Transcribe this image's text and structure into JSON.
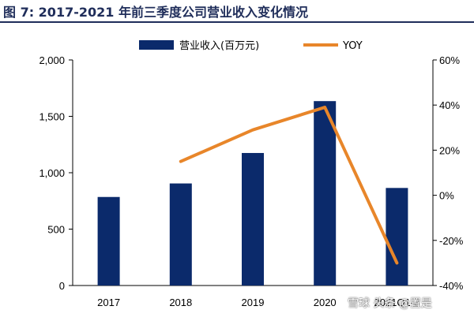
{
  "title": "图 7:  2017-2021 年前三季度公司营业收入变化情况",
  "chart_data": {
    "type": "bar+line",
    "categories": [
      "2017",
      "2018",
      "2019",
      "2020",
      "2021Q1-3"
    ],
    "series": [
      {
        "name": "营业收入(百万元)",
        "type": "bar",
        "axis": "left",
        "color": "#0b2a6b",
        "values": [
          785,
          905,
          1175,
          1635,
          865
        ]
      },
      {
        "name": "YOY",
        "type": "line",
        "axis": "right",
        "color": "#e8862a",
        "values": [
          null,
          15,
          29,
          39,
          -30
        ]
      }
    ],
    "ylim_left": [
      0,
      2000
    ],
    "ylim_right": [
      -40,
      60
    ],
    "left_ticks": [
      "0",
      "500",
      "1,000",
      "1,500",
      "2,000"
    ],
    "right_ticks": [
      "-40%",
      "-20%",
      "0%",
      "20%",
      "40%",
      "60%"
    ],
    "legend_position": "top"
  },
  "watermark": "雪球 头条 @置是"
}
